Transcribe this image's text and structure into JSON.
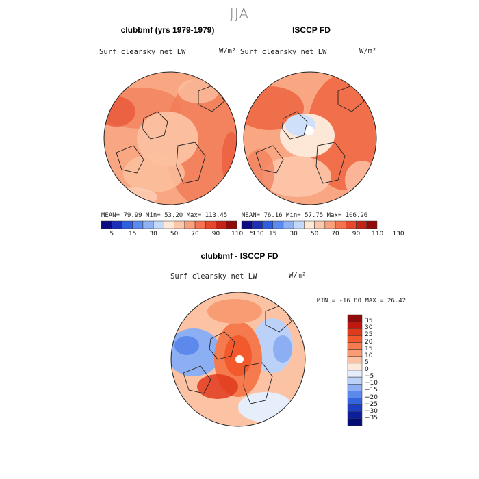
{
  "season": "JJA",
  "panels": [
    {
      "title": "clubbmf (yrs 1979-1979)",
      "subtitle": "Surf clearsky net LW",
      "units": "W/m²",
      "stats": "MEAN=  79.99  Min=  53.20  Max= 113.45"
    },
    {
      "title": "ISCCP FD",
      "subtitle": "Surf clearsky net LW",
      "units": "W/m²",
      "stats": "MEAN=  76.16  Min=  57.75  Max= 106.26"
    },
    {
      "title": "clubbmf - ISCCP FD",
      "subtitle": "Surf clearsky net LW",
      "units": "W/m²",
      "stats": "MIN = -16.80  MAX =  26.42"
    }
  ],
  "chart_data": [
    {
      "type": "heatmap",
      "projection": "north-polar-stereographic",
      "title": "clubbmf (yrs 1979-1979)",
      "subtitle": "Surf clearsky net LW",
      "units": "W/m²",
      "mean": 79.99,
      "min": 53.2,
      "max": 113.45,
      "colorbar_levels": [
        "5",
        "15",
        "30",
        "50",
        "70",
        "90",
        "110",
        "130"
      ]
    },
    {
      "type": "heatmap",
      "projection": "north-polar-stereographic",
      "title": "ISCCP FD",
      "subtitle": "Surf clearsky net LW",
      "units": "W/m²",
      "mean": 76.16,
      "min": 57.75,
      "max": 106.26,
      "colorbar_levels": [
        "5",
        "15",
        "30",
        "50",
        "70",
        "90",
        "110",
        "130"
      ]
    },
    {
      "type": "heatmap",
      "projection": "north-polar-stereographic",
      "title": "clubbmf - ISCCP FD",
      "subtitle": "Surf clearsky net LW",
      "units": "W/m²",
      "min": -16.8,
      "max": 26.42,
      "colorbar_levels": [
        "35",
        "30",
        "25",
        "20",
        "15",
        "10",
        "5",
        "0",
        "−5",
        "−10",
        "−15",
        "−20",
        "−25",
        "−30",
        "−35"
      ]
    }
  ],
  "colors": {
    "abs_scale": [
      "#0c0a82",
      "#1b2fb8",
      "#2f5ee0",
      "#5b8bf0",
      "#8fb2f5",
      "#c4d9fa",
      "#fde8d8",
      "#fcc6ab",
      "#f9a07c",
      "#f57350",
      "#e5482b",
      "#c22516",
      "#8f0c0c"
    ],
    "diff_scale": [
      "#8f0c0c",
      "#c01810",
      "#e03a1c",
      "#f25a2e",
      "#f57a4e",
      "#f89c74",
      "#fbc3a4",
      "#fde9dc",
      "#e6eefc",
      "#bcd1f7",
      "#8caef2",
      "#5d88ec",
      "#3564e0",
      "#1d3dc3",
      "#0c1e99",
      "#060c76"
    ]
  }
}
